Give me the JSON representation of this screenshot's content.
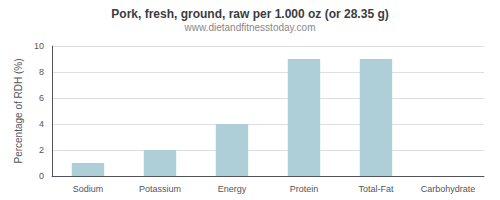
{
  "chart_data": {
    "type": "bar",
    "title": "Pork, fresh, ground, raw per 1.000 oz (or 28.35 g)",
    "subtitle": "www.dietandfitnesstoday.com",
    "categories": [
      "Sodium",
      "Potassium",
      "Energy",
      "Protein",
      "Total-Fat",
      "Carbohydrate"
    ],
    "values": [
      1.0,
      2.0,
      4.0,
      9.0,
      9.0,
      0.0
    ],
    "color": "#aecfd8",
    "ylabel": "Percentage of RDH (%)",
    "ylim": [
      0,
      10
    ],
    "yticks": [
      0,
      2,
      4,
      6,
      8,
      10
    ],
    "grid": true
  }
}
